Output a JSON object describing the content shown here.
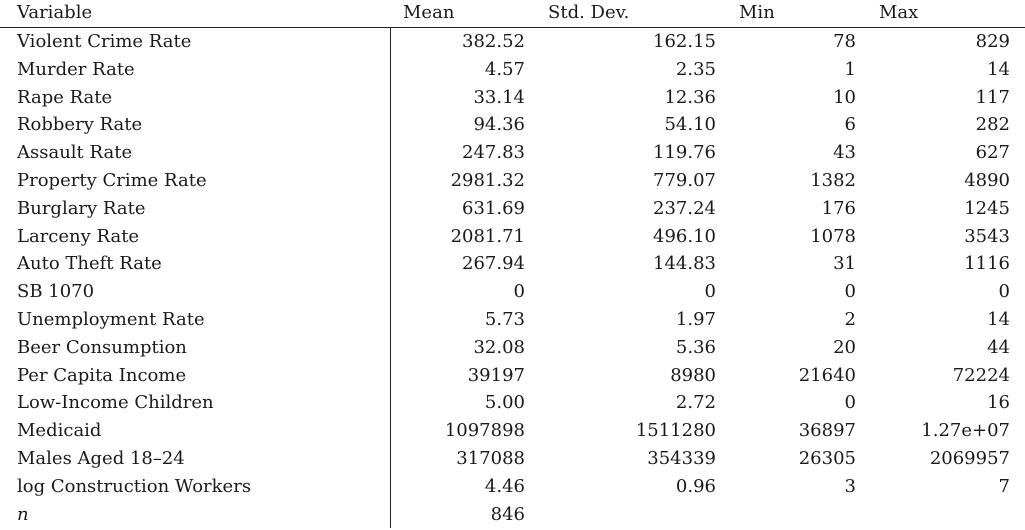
{
  "table": {
    "headers": {
      "variable": "Variable",
      "mean": "Mean",
      "sd": "Std. Dev.",
      "min": "Min",
      "max": "Max"
    },
    "rows": [
      {
        "variable": "Violent Crime Rate",
        "mean": "382.52",
        "sd": "162.15",
        "min": "78",
        "max": "829"
      },
      {
        "variable": "Murder Rate",
        "mean": "4.57",
        "sd": "2.35",
        "min": "1",
        "max": "14"
      },
      {
        "variable": "Rape Rate",
        "mean": "33.14",
        "sd": "12.36",
        "min": "10",
        "max": "117"
      },
      {
        "variable": "Robbery Rate",
        "mean": "94.36",
        "sd": "54.10",
        "min": "6",
        "max": "282"
      },
      {
        "variable": "Assault Rate",
        "mean": "247.83",
        "sd": "119.76",
        "min": "43",
        "max": "627"
      },
      {
        "variable": "Property Crime Rate",
        "mean": "2981.32",
        "sd": "779.07",
        "min": "1382",
        "max": "4890"
      },
      {
        "variable": "Burglary Rate",
        "mean": "631.69",
        "sd": "237.24",
        "min": "176",
        "max": "1245"
      },
      {
        "variable": "Larceny Rate",
        "mean": "2081.71",
        "sd": "496.10",
        "min": "1078",
        "max": "3543"
      },
      {
        "variable": "Auto Theft Rate",
        "mean": "267.94",
        "sd": "144.83",
        "min": "31",
        "max": "1116"
      },
      {
        "variable": "SB 1070",
        "mean": "0",
        "sd": "0",
        "min": "0",
        "max": "0"
      },
      {
        "variable": "Unemployment Rate",
        "mean": "5.73",
        "sd": "1.97",
        "min": "2",
        "max": "14"
      },
      {
        "variable": "Beer Consumption",
        "mean": "32.08",
        "sd": "5.36",
        "min": "20",
        "max": "44"
      },
      {
        "variable": "Per Capita Income",
        "mean": "39197",
        "sd": "8980",
        "min": "21640",
        "max": "72224"
      },
      {
        "variable": "Low-Income Children",
        "mean": "5.00",
        "sd": "2.72",
        "min": "0",
        "max": "16"
      },
      {
        "variable": "Medicaid",
        "mean": "1097898",
        "sd": "1511280",
        "min": "36897",
        "max": "1.27e+07"
      },
      {
        "variable": "Males Aged 18–24",
        "mean": "317088",
        "sd": "354339",
        "min": "26305",
        "max": "2069957"
      },
      {
        "variable": "log Construction Workers",
        "mean": "4.46",
        "sd": "0.96",
        "min": "3",
        "max": "7"
      }
    ],
    "n_row": {
      "variable": "n",
      "mean": "846",
      "sd": "",
      "min": "",
      "max": ""
    }
  }
}
